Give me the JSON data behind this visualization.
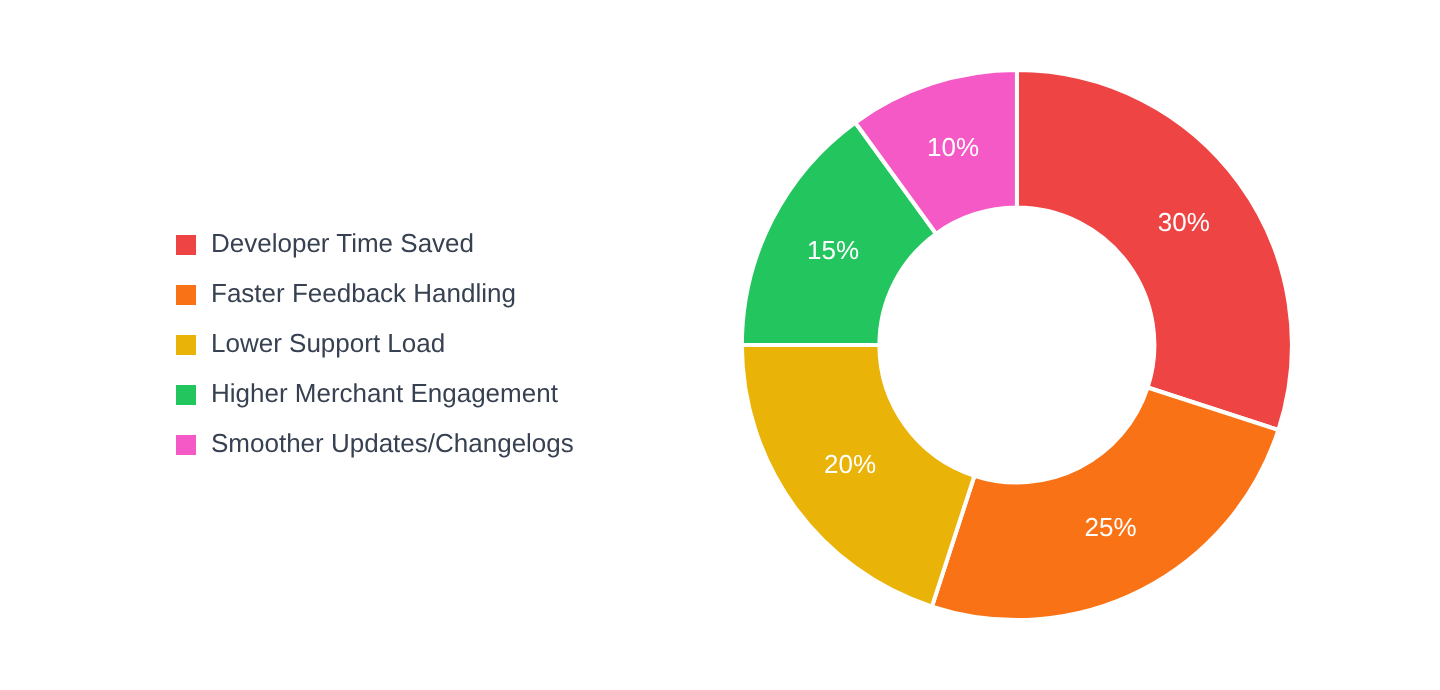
{
  "chart_data": {
    "type": "donut",
    "categories": [
      "Developer Time Saved",
      "Faster Feedback Handling",
      "Lower Support Load",
      "Higher Merchant Engagement",
      "Smoother Updates/Changelogs"
    ],
    "values": [
      30,
      25,
      20,
      15,
      10
    ],
    "colors": [
      "#ef4444",
      "#f97316",
      "#eab308",
      "#22c55e",
      "#f459c6"
    ],
    "value_labels": [
      "30%",
      "25%",
      "20%",
      "15%",
      "10%"
    ],
    "legend": "left"
  }
}
